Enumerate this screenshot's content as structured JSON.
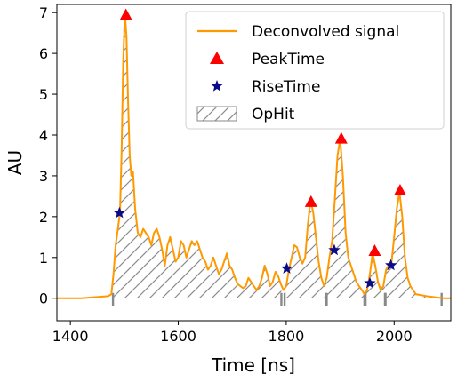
{
  "chart_data": {
    "type": "line",
    "xlabel": "Time [ns]",
    "ylabel": "AU",
    "xlim": [
      1375,
      2105
    ],
    "ylim": [
      -0.55,
      7.2
    ],
    "xticks": [
      1400,
      1600,
      1800,
      2000
    ],
    "yticks": [
      0,
      1,
      2,
      3,
      4,
      5,
      6,
      7
    ],
    "grid": false,
    "legend_position": "top-right",
    "legend": [
      {
        "label": "Deconvolved signal",
        "marker": "line"
      },
      {
        "label": "PeakTime",
        "marker": "triangle"
      },
      {
        "label": "RiseTime",
        "marker": "star"
      },
      {
        "label": "OpHit",
        "marker": "hatch"
      }
    ],
    "colors": {
      "signal": "#ff9900",
      "peak": "#ff0000",
      "rise": "#0a0a8a",
      "ophit": "#888888"
    },
    "series": [
      {
        "name": "Deconvolved signal",
        "x": [
          1375,
          1420,
          1470,
          1476,
          1480,
          1484,
          1488,
          1492,
          1495,
          1498,
          1501,
          1504,
          1507,
          1510,
          1513,
          1516,
          1520,
          1525,
          1530,
          1535,
          1540,
          1545,
          1550,
          1555,
          1560,
          1565,
          1570,
          1575,
          1580,
          1585,
          1590,
          1595,
          1600,
          1605,
          1610,
          1615,
          1620,
          1625,
          1630,
          1635,
          1640,
          1645,
          1650,
          1655,
          1660,
          1665,
          1670,
          1675,
          1680,
          1685,
          1690,
          1695,
          1700,
          1705,
          1710,
          1715,
          1720,
          1725,
          1730,
          1735,
          1740,
          1745,
          1750,
          1755,
          1760,
          1765,
          1770,
          1775,
          1780,
          1785,
          1790,
          1795,
          1800,
          1805,
          1810,
          1815,
          1820,
          1825,
          1830,
          1835,
          1840,
          1845,
          1850,
          1855,
          1860,
          1865,
          1870,
          1875,
          1880,
          1885,
          1890,
          1895,
          1900,
          1905,
          1910,
          1915,
          1920,
          1925,
          1930,
          1935,
          1940,
          1945,
          1950,
          1955,
          1960,
          1965,
          1970,
          1975,
          1980,
          1985,
          1990,
          1995,
          2000,
          2005,
          2010,
          2015,
          2020,
          2025,
          2030,
          2040,
          2060,
          2090,
          2105
        ],
        "y": [
          0.0,
          0.0,
          0.05,
          0.1,
          0.6,
          1.3,
          1.7,
          2.1,
          3.6,
          5.8,
          7.0,
          6.4,
          4.8,
          3.5,
          3.0,
          3.1,
          2.2,
          1.6,
          1.5,
          1.7,
          1.6,
          1.5,
          1.3,
          1.6,
          1.7,
          1.5,
          1.2,
          0.8,
          1.3,
          1.5,
          1.2,
          0.9,
          1.0,
          1.4,
          1.3,
          1.0,
          1.2,
          1.4,
          1.3,
          1.4,
          1.2,
          1.0,
          0.9,
          0.7,
          0.8,
          1.0,
          0.8,
          0.6,
          0.7,
          0.9,
          1.1,
          0.8,
          0.7,
          0.5,
          0.35,
          0.3,
          0.25,
          0.3,
          0.5,
          0.4,
          0.3,
          0.2,
          0.3,
          0.5,
          0.8,
          0.6,
          0.3,
          0.4,
          0.65,
          0.55,
          0.35,
          0.2,
          0.3,
          0.7,
          1.0,
          1.3,
          1.25,
          1.0,
          0.85,
          1.0,
          1.8,
          2.4,
          2.1,
          1.5,
          0.9,
          0.5,
          0.3,
          0.5,
          1.0,
          1.4,
          2.4,
          3.5,
          3.9,
          3.0,
          1.6,
          1.0,
          0.8,
          0.6,
          0.4,
          0.3,
          0.2,
          0.1,
          0.2,
          0.6,
          1.1,
          0.8,
          0.4,
          0.2,
          0.3,
          0.7,
          0.8,
          0.85,
          1.5,
          2.2,
          2.6,
          2.0,
          1.0,
          0.5,
          0.3,
          0.1,
          0.05,
          0.0,
          0.0
        ]
      }
    ],
    "peak_time": [
      {
        "x": 1503,
        "y": 6.95
      },
      {
        "x": 1846,
        "y": 2.37
      },
      {
        "x": 1902,
        "y": 3.92
      },
      {
        "x": 1964,
        "y": 1.17
      },
      {
        "x": 2011,
        "y": 2.65
      }
    ],
    "rise_time": [
      {
        "x": 1491,
        "y": 2.09
      },
      {
        "x": 1801,
        "y": 0.73
      },
      {
        "x": 1889,
        "y": 1.18
      },
      {
        "x": 1955,
        "y": 0.37
      },
      {
        "x": 1994,
        "y": 0.81
      }
    ],
    "ophit_intervals": [
      {
        "start": 1479,
        "end": 1791
      },
      {
        "start": 1797,
        "end": 1875
      },
      {
        "start": 1873,
        "end": 1945
      },
      {
        "start": 1947,
        "end": 1983
      },
      {
        "start": 1984,
        "end": 2088
      }
    ]
  }
}
